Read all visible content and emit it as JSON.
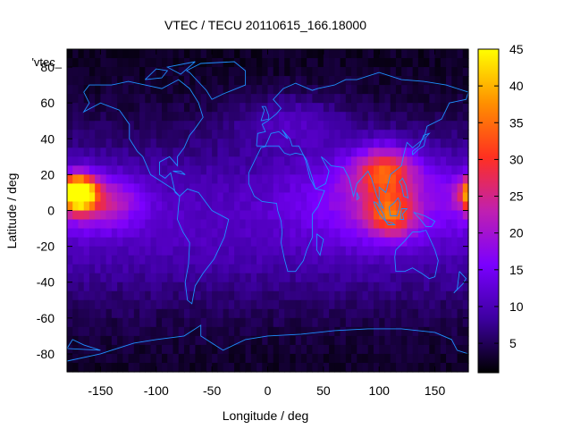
{
  "chart_data": {
    "type": "heatmap",
    "title": "VTEC / TECU 20110615_166.18000",
    "xlabel": "Longitude / deg",
    "ylabel": "Latitude / deg",
    "key_label": "'vtec_",
    "xlim": [
      -180,
      180
    ],
    "ylim": [
      -90,
      90
    ],
    "x_ticks": [
      -150,
      -100,
      -50,
      0,
      50,
      100,
      150
    ],
    "y_ticks": [
      -80,
      -60,
      -40,
      -20,
      0,
      20,
      40,
      60,
      80
    ],
    "colorbar": {
      "range": [
        1,
        45
      ],
      "ticks": [
        5,
        10,
        15,
        20,
        25,
        30,
        35,
        40,
        45
      ],
      "colormap": [
        "#000000",
        "#3d00a0",
        "#7a00ff",
        "#c020b0",
        "#ff3020",
        "#ff9000",
        "#ffff00"
      ]
    },
    "grid_resolution_deg": {
      "lon": 5,
      "lat": 5
    },
    "features": [
      {
        "lon": -170,
        "lat": 10,
        "peak": 45,
        "slon": 14,
        "slat": 9
      },
      {
        "lon": -150,
        "lat": 5,
        "peak": 14,
        "slon": 35,
        "slat": 14
      },
      {
        "lon": 105,
        "lat": 22,
        "peak": 18,
        "slon": 25,
        "slat": 13
      },
      {
        "lon": 110,
        "lat": -3,
        "peak": 17,
        "slon": 22,
        "slat": 12
      },
      {
        "lon": 100,
        "lat": 10,
        "peak": 10,
        "slon": 70,
        "slat": 25
      },
      {
        "lon": 20,
        "lat": 50,
        "peak": 6,
        "slon": 50,
        "slat": 15
      }
    ],
    "coastline_color": "#1e90ff"
  }
}
